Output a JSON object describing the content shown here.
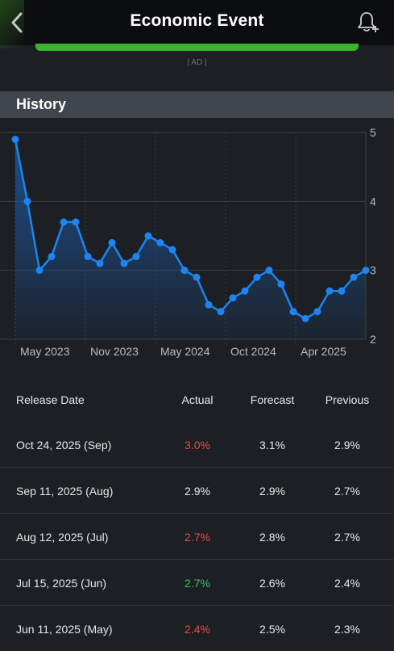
{
  "header": {
    "title": "Economic Event",
    "back_icon": "chevron-left-icon",
    "alert_icon": "bell-plus-icon",
    "ad_label": "| AD |"
  },
  "history": {
    "title": "History"
  },
  "colors": {
    "line": "#1d84f0",
    "positive": "#3bc45a",
    "negative": "#f0484a",
    "ad_bar": "#3cb22e"
  },
  "chart_data": {
    "type": "area",
    "x_tick_labels": [
      "May 2023",
      "Nov 2023",
      "May 2024",
      "Oct 2024",
      "Apr 2025"
    ],
    "y_tick_labels": [
      "5",
      "4",
      "3",
      "2"
    ],
    "ylim": [
      2,
      5
    ],
    "grid": true,
    "series": [
      {
        "values": [
          4.9,
          4.0,
          3.0,
          3.2,
          3.7,
          3.7,
          3.2,
          3.1,
          3.4,
          3.1,
          3.2,
          3.5,
          3.4,
          3.3,
          3.0,
          2.9,
          2.5,
          2.4,
          2.6,
          2.7,
          2.9,
          3.0,
          2.8,
          2.4,
          2.3,
          2.4,
          2.7,
          2.7,
          2.9,
          3.0
        ]
      }
    ]
  },
  "table": {
    "headers": [
      "Release Date",
      "Actual",
      "Forecast",
      "Previous"
    ],
    "rows": [
      {
        "date": "Oct 24, 2025 (Sep)",
        "actual": "3.0%",
        "forecast": "3.1%",
        "previous": "2.9%",
        "tone": "red"
      },
      {
        "date": "Sep 11, 2025 (Aug)",
        "actual": "2.9%",
        "forecast": "2.9%",
        "previous": "2.7%",
        "tone": "neutral"
      },
      {
        "date": "Aug 12, 2025 (Jul)",
        "actual": "2.7%",
        "forecast": "2.8%",
        "previous": "2.7%",
        "tone": "red"
      },
      {
        "date": "Jul 15, 2025 (Jun)",
        "actual": "2.7%",
        "forecast": "2.6%",
        "previous": "2.4%",
        "tone": "green"
      },
      {
        "date": "Jun 11, 2025 (May)",
        "actual": "2.4%",
        "forecast": "2.5%",
        "previous": "2.3%",
        "tone": "red"
      }
    ]
  }
}
